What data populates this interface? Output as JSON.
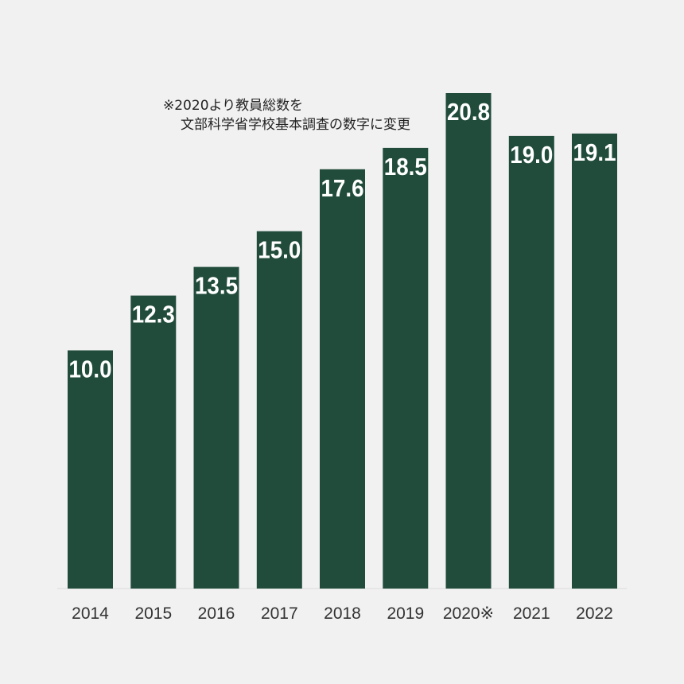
{
  "chart_data": {
    "type": "bar",
    "categories": [
      "2014",
      "2015",
      "2016",
      "2017",
      "2018",
      "2019",
      "2020※",
      "2021",
      "2022"
    ],
    "values": [
      10.0,
      12.3,
      13.5,
      15.0,
      17.6,
      18.5,
      20.8,
      19.0,
      19.1
    ],
    "data_labels": [
      "10.0",
      "12.3",
      "13.5",
      "15.0",
      "17.6",
      "18.5",
      "20.8",
      "19.0",
      "19.1"
    ],
    "annotation": [
      "※2020より教員総数を",
      "文部科学省学校基本調査の数字に変更"
    ],
    "title": "",
    "xlabel": "",
    "ylabel": "",
    "ylim": [
      0,
      20.8
    ],
    "grid": false,
    "bar_color": "#214c3b",
    "label_color": "#ffffff"
  }
}
